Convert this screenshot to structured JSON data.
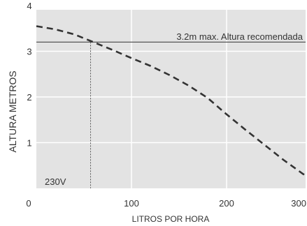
{
  "chart_data": {
    "type": "line",
    "xlabel": "LITROS POR HORA",
    "ylabel": "ALTURA METROS",
    "xlim": [
      0,
      300
    ],
    "ylim": [
      0,
      4
    ],
    "x_ticks": [
      "0",
      "100",
      "200",
      "300"
    ],
    "y_ticks": [
      "1",
      "2",
      "3",
      "4"
    ],
    "grid": true,
    "series": [
      {
        "style": "dashed",
        "color": "#333333",
        "x": [
          0,
          20,
          40,
          60,
          80,
          100,
          120,
          140,
          160,
          180,
          200,
          220,
          240,
          260,
          280,
          300
        ],
        "y": [
          3.55,
          3.48,
          3.37,
          3.2,
          3.03,
          2.85,
          2.68,
          2.48,
          2.25,
          1.98,
          1.62,
          1.28,
          0.95,
          0.62,
          0.32,
          0.05
        ]
      }
    ],
    "reference_line": {
      "y": 3.2,
      "label": "3.2m max. Altura recomendada",
      "color": "#555555"
    },
    "marker_line": {
      "x": 57,
      "label": "230V",
      "style": "dotted"
    },
    "plot_background": "#e3e3e3",
    "grid_color": "#ffffff"
  }
}
